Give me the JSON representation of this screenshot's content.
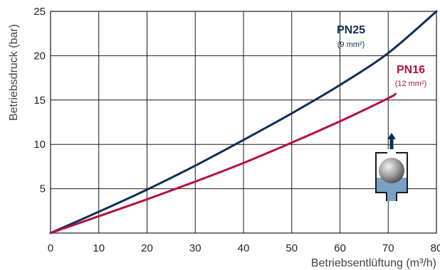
{
  "chart_data": {
    "type": "line",
    "xlabel": "Betriebsentlüftung (m³/h)",
    "ylabel": "Betriebsdruck (bar)",
    "xlim": [
      0,
      80
    ],
    "ylim": [
      0,
      25
    ],
    "xticks": [
      0,
      10,
      20,
      30,
      40,
      50,
      60,
      70,
      80
    ],
    "yticks": [
      5,
      10,
      15,
      20,
      25
    ],
    "grid": true,
    "series": [
      {
        "name": "PN25",
        "sublabel": "(9 mm²)",
        "color": "#0d2f57",
        "x": [
          0,
          10,
          20,
          30,
          40,
          50,
          60,
          70,
          80
        ],
        "y": [
          0,
          2.4,
          4.9,
          7.6,
          10.5,
          13.5,
          16.7,
          20.3,
          25.0
        ]
      },
      {
        "name": "PN16",
        "sublabel": "(12 mm²)",
        "color": "#b5113f",
        "x": [
          0,
          10,
          20,
          30,
          40,
          50,
          60,
          70,
          71.5
        ],
        "y": [
          0,
          1.9,
          3.8,
          5.8,
          7.9,
          10.2,
          12.6,
          15.2,
          15.7
        ]
      }
    ],
    "inset_icon": "float-valve-icon"
  }
}
